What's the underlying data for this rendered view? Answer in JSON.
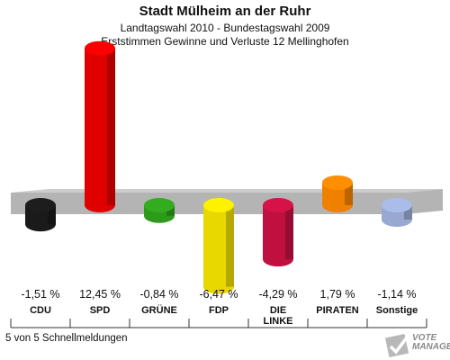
{
  "header": {
    "title": "Stadt Mülheim an der Ruhr",
    "subtitle1": "Landtagswahl 2010 - Bundestagswahl 2009",
    "subtitle2": "Erststimmen Gewinne und Verluste 12 Mellinghofen"
  },
  "footer": {
    "status": "5 von 5 Schnellmeldungen"
  },
  "logo": {
    "line1": "VOTE",
    "line2": "MANAGER"
  },
  "chart_data": {
    "type": "bar",
    "title": "Stadt Mülheim an der Ruhr",
    "categories": [
      "CDU",
      "SPD",
      "GRÜNE",
      "FDP",
      "DIE LINKE",
      "PIRATEN",
      "Sonstige"
    ],
    "values": [
      -1.51,
      12.45,
      -0.84,
      -6.47,
      -4.29,
      1.79,
      -1.14
    ],
    "value_labels": [
      "-1,51 %",
      "12,45 %",
      "-0,84 %",
      "-6,47 %",
      "-4,29 %",
      "1,79 %",
      "-1,14 %"
    ],
    "colors": [
      "#1a1a1a",
      "#e00000",
      "#2e9a1c",
      "#e8d800",
      "#c01040",
      "#f08000",
      "#98a8d0"
    ],
    "grid": false,
    "legend": "none"
  }
}
